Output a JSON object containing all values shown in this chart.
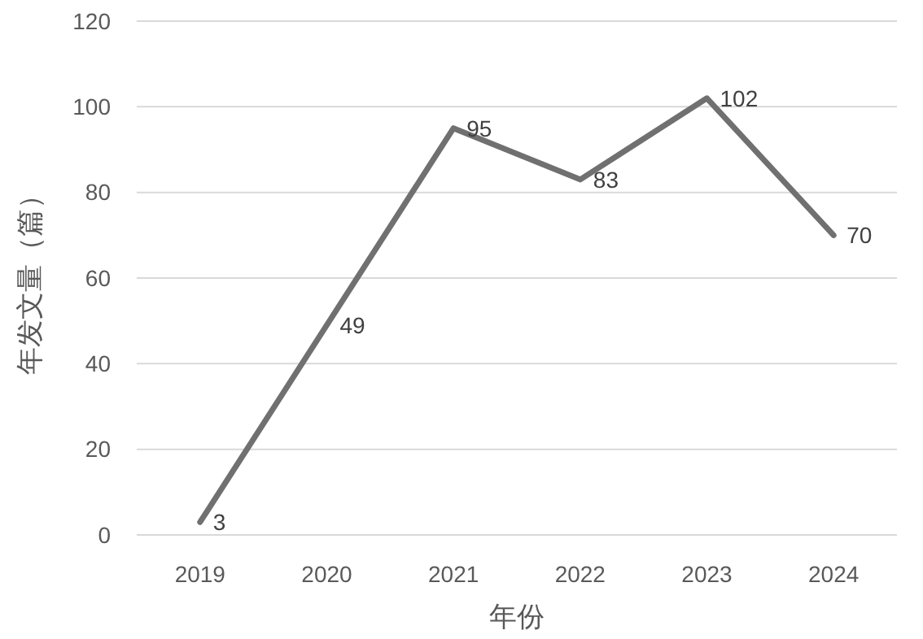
{
  "chart_data": {
    "type": "line",
    "xlabel": "年份",
    "ylabel": "年发文量（篇）",
    "categories": [
      "2019",
      "2020",
      "2021",
      "2022",
      "2023",
      "2024"
    ],
    "series": [
      {
        "color": "#707070",
        "values": [
          3,
          49,
          95,
          83,
          102,
          70
        ]
      }
    ],
    "ylim": [
      0,
      120
    ],
    "yticks": [
      0,
      20,
      40,
      60,
      80,
      100,
      120
    ],
    "grid": "y",
    "data_labels": true,
    "marker": "none",
    "line_style": "solid"
  }
}
